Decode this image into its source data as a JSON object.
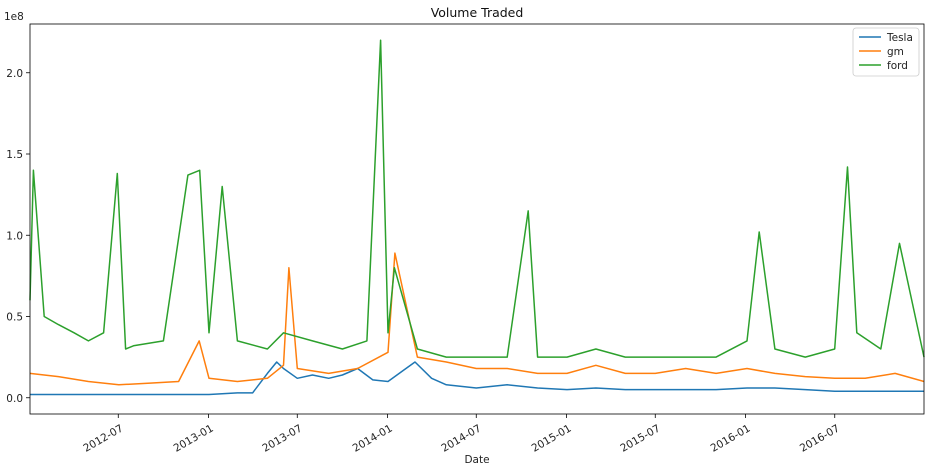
{
  "chart_data": {
    "type": "line",
    "title": "Volume Traded",
    "xlabel": "Date",
    "ylabel": "",
    "y_scale_label": "1e8",
    "x_range": [
      "2012-01-03",
      "2016-12-30"
    ],
    "ylim": [
      -0.1,
      2.3
    ],
    "y_unit_multiplier": "1e8",
    "y_ticks": [
      0.0,
      0.5,
      1.0,
      1.5,
      2.0
    ],
    "y_tick_labels": [
      "0.0",
      "0.5",
      "1.0",
      "1.5",
      "2.0"
    ],
    "x_ticks": [
      "2012-07-01",
      "2013-01-01",
      "2013-07-01",
      "2014-01-01",
      "2014-07-01",
      "2015-01-01",
      "2015-07-01",
      "2016-01-01",
      "2016-07-01"
    ],
    "x_tick_labels": [
      "2012-07",
      "2013-01",
      "2013-07",
      "2014-01",
      "2014-07",
      "2015-01",
      "2015-07",
      "2016-01",
      "2016-07"
    ],
    "grid": false,
    "legend_position": "top-right",
    "series": [
      {
        "name": "Tesla",
        "color": "#1f77b4",
        "x": [
          "2012-01-03",
          "2012-03-01",
          "2012-05-01",
          "2012-07-02",
          "2012-09-04",
          "2012-11-01",
          "2013-01-02",
          "2013-03-01",
          "2013-04-01",
          "2013-05-01",
          "2013-05-20",
          "2013-06-03",
          "2013-07-01",
          "2013-08-01",
          "2013-09-03",
          "2013-10-01",
          "2013-11-01",
          "2013-12-02",
          "2014-01-02",
          "2014-02-03",
          "2014-02-26",
          "2014-04-01",
          "2014-05-01",
          "2014-07-01",
          "2014-09-02",
          "2014-11-03",
          "2015-01-02",
          "2015-03-02",
          "2015-05-01",
          "2015-07-01",
          "2015-09-01",
          "2015-11-02",
          "2016-01-04",
          "2016-03-01",
          "2016-05-02",
          "2016-07-01",
          "2016-09-01",
          "2016-11-01",
          "2016-12-30"
        ],
        "values": [
          0.02,
          0.02,
          0.02,
          0.02,
          0.02,
          0.02,
          0.02,
          0.03,
          0.03,
          0.15,
          0.22,
          0.18,
          0.12,
          0.14,
          0.12,
          0.14,
          0.18,
          0.11,
          0.1,
          0.17,
          0.22,
          0.12,
          0.08,
          0.06,
          0.08,
          0.06,
          0.05,
          0.06,
          0.05,
          0.05,
          0.05,
          0.05,
          0.06,
          0.06,
          0.05,
          0.04,
          0.04,
          0.04,
          0.04
        ]
      },
      {
        "name": "gm",
        "color": "#ff7f0e",
        "x": [
          "2012-01-03",
          "2012-03-01",
          "2012-05-01",
          "2012-07-02",
          "2012-09-04",
          "2012-11-01",
          "2012-12-13",
          "2013-01-02",
          "2013-03-01",
          "2013-05-01",
          "2013-06-03",
          "2013-06-14",
          "2013-07-01",
          "2013-09-03",
          "2013-11-01",
          "2014-01-02",
          "2014-01-16",
          "2014-03-03",
          "2014-05-01",
          "2014-07-01",
          "2014-09-02",
          "2014-11-03",
          "2015-01-02",
          "2015-03-02",
          "2015-05-01",
          "2015-07-01",
          "2015-09-01",
          "2015-11-02",
          "2016-01-04",
          "2016-03-01",
          "2016-05-02",
          "2016-07-01",
          "2016-09-01",
          "2016-11-01",
          "2016-12-30"
        ],
        "values": [
          0.15,
          0.13,
          0.1,
          0.08,
          0.09,
          0.1,
          0.35,
          0.12,
          0.1,
          0.12,
          0.2,
          0.8,
          0.18,
          0.15,
          0.18,
          0.28,
          0.89,
          0.25,
          0.22,
          0.18,
          0.18,
          0.15,
          0.15,
          0.2,
          0.15,
          0.15,
          0.18,
          0.15,
          0.18,
          0.15,
          0.13,
          0.12,
          0.12,
          0.15,
          0.1
        ]
      },
      {
        "name": "ford",
        "color": "#2ca02c",
        "x": [
          "2012-01-03",
          "2012-01-10",
          "2012-02-01",
          "2012-03-01",
          "2012-04-02",
          "2012-05-01",
          "2012-06-01",
          "2012-06-29",
          "2012-07-16",
          "2012-08-01",
          "2012-10-01",
          "2012-11-20",
          "2012-12-14",
          "2013-01-02",
          "2013-01-29",
          "2013-03-01",
          "2013-05-01",
          "2013-06-03",
          "2013-08-01",
          "2013-10-01",
          "2013-11-20",
          "2013-12-18",
          "2014-01-02",
          "2014-01-15",
          "2014-03-03",
          "2014-05-01",
          "2014-07-01",
          "2014-09-02",
          "2014-10-15",
          "2014-11-03",
          "2015-01-02",
          "2015-03-02",
          "2015-05-01",
          "2015-07-01",
          "2015-09-01",
          "2015-11-02",
          "2016-01-04",
          "2016-01-29",
          "2016-03-01",
          "2016-05-02",
          "2016-07-01",
          "2016-07-27",
          "2016-08-15",
          "2016-10-03",
          "2016-11-10",
          "2016-12-30"
        ],
        "values": [
          0.6,
          1.4,
          0.5,
          0.45,
          0.4,
          0.35,
          0.4,
          1.38,
          0.3,
          0.32,
          0.35,
          1.37,
          1.4,
          0.4,
          1.3,
          0.35,
          0.3,
          0.4,
          0.35,
          0.3,
          0.35,
          2.2,
          0.4,
          0.8,
          0.3,
          0.25,
          0.25,
          0.25,
          1.15,
          0.25,
          0.25,
          0.3,
          0.25,
          0.25,
          0.25,
          0.25,
          0.35,
          1.02,
          0.3,
          0.25,
          0.3,
          1.42,
          0.4,
          0.3,
          0.95,
          0.25
        ]
      }
    ]
  }
}
